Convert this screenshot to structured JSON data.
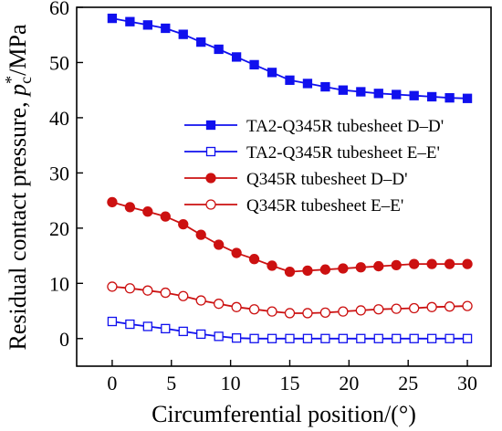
{
  "chart_data": {
    "type": "line",
    "xlabel": "Circumferential position/(°)",
    "ylabel": {
      "prefix": "Residual contact pressure, ",
      "var": "p",
      "sub": "c",
      "sup": "*",
      "suffix": "/MPa"
    },
    "xlim": [
      -3,
      32
    ],
    "ylim": [
      -5,
      60
    ],
    "xticks": [
      0,
      5,
      10,
      15,
      20,
      25,
      30
    ],
    "yticks": [
      0,
      10,
      20,
      30,
      40,
      50,
      60
    ],
    "x": [
      0,
      1.5,
      3,
      4.5,
      6,
      7.5,
      9,
      10.5,
      12,
      13.5,
      15,
      16.5,
      18,
      19.5,
      21,
      22.5,
      24,
      25.5,
      27,
      28.5,
      30
    ],
    "series": [
      {
        "name": "TA2-Q345R tubesheet D–D'",
        "color": "#1010ee",
        "marker": "square",
        "filled": true,
        "values": [
          58.0,
          57.4,
          56.8,
          56.2,
          55.1,
          53.7,
          52.4,
          51.0,
          49.6,
          48.2,
          46.8,
          46.2,
          45.6,
          45.0,
          44.7,
          44.4,
          44.2,
          44.0,
          43.8,
          43.6,
          43.5
        ]
      },
      {
        "name": "TA2-Q345R tubesheet E–E'",
        "color": "#1010ee",
        "marker": "square",
        "filled": false,
        "values": [
          3.1,
          2.6,
          2.2,
          1.8,
          1.3,
          0.8,
          0.4,
          0.1,
          0.0,
          0.0,
          0.0,
          0.0,
          0.0,
          0.0,
          0.0,
          0.0,
          0.0,
          0.0,
          0.0,
          0.0,
          0.0
        ]
      },
      {
        "name": "Q345R tubesheet D–D'",
        "color": "#cc1111",
        "marker": "circle",
        "filled": true,
        "values": [
          24.7,
          23.8,
          23.0,
          22.1,
          20.7,
          18.8,
          17.0,
          15.5,
          14.4,
          13.2,
          12.1,
          12.3,
          12.5,
          12.7,
          12.9,
          13.1,
          13.3,
          13.5,
          13.5,
          13.5,
          13.5
        ]
      },
      {
        "name": "Q345R tubesheet E–E'",
        "color": "#cc1111",
        "marker": "circle",
        "filled": false,
        "values": [
          9.4,
          9.1,
          8.7,
          8.3,
          7.7,
          6.9,
          6.3,
          5.7,
          5.3,
          4.9,
          4.6,
          4.6,
          4.7,
          4.9,
          5.1,
          5.3,
          5.4,
          5.5,
          5.7,
          5.8,
          5.9
        ]
      }
    ],
    "legend_position": "center-right",
    "grid": false
  }
}
